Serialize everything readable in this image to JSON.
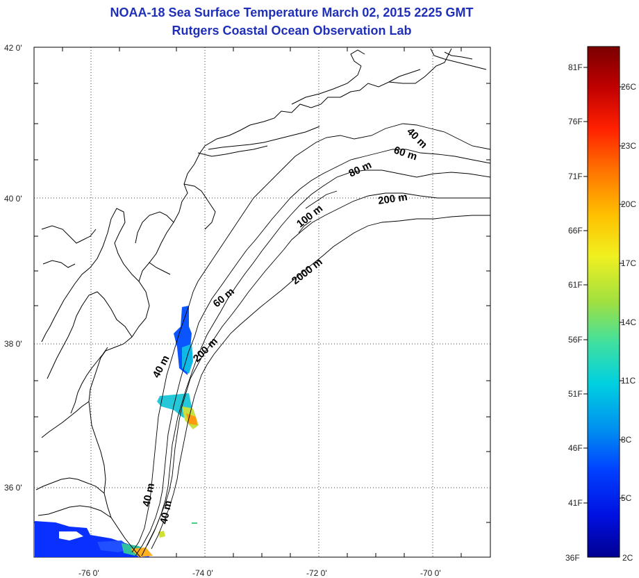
{
  "title": {
    "line1": "NOAA-18 Sea Surface Temperature March 02, 2015 2225 GMT",
    "line2": "Rutgers Coastal Ocean Observation Lab"
  },
  "axes": {
    "lon_ticks": [
      "-76 0'",
      "-74 0'",
      "-72 0'",
      "-70 0'"
    ],
    "lat_ticks": [
      "42 0'",
      "40 0'",
      "38 0'",
      "36 0'"
    ]
  },
  "isobaths": [
    "40 m",
    "60 m",
    "80 m",
    "100 m",
    "200 m",
    "2000 m",
    "60 m",
    "40 m",
    "200 m",
    "40 m",
    "40 m"
  ],
  "colorbar": {
    "fahrenheit": [
      "81F",
      "76F",
      "71F",
      "66F",
      "61F",
      "56F",
      "51F",
      "46F",
      "41F",
      "36F"
    ],
    "celsius": [
      "26C",
      "23C",
      "20C",
      "17C",
      "14C",
      "11C",
      "8C",
      "5C",
      "2C"
    ],
    "colors": [
      "#7a0000",
      "#c00000",
      "#ff2000",
      "#ff7a00",
      "#ffc000",
      "#f0f020",
      "#a0e040",
      "#40e0a0",
      "#00d0e0",
      "#0090f0",
      "#0040ff",
      "#0010e0",
      "#000090"
    ]
  }
}
